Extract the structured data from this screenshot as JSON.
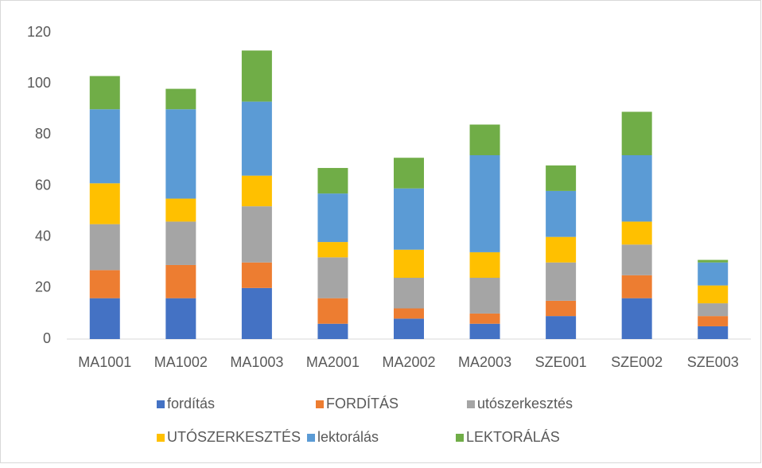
{
  "chart_data": {
    "type": "stacked_bar",
    "categories": [
      "MA1001",
      "MA1002",
      "MA1003",
      "MA2001",
      "MA2002",
      "MA2003",
      "SZE001",
      "SZE002",
      "SZE003"
    ],
    "series": [
      {
        "name": "fordítás",
        "color": "#4472c4",
        "values": [
          16,
          16,
          20,
          6,
          8,
          6,
          9,
          16,
          5
        ]
      },
      {
        "name": "FORDÍTÁS",
        "color": "#ed7d31",
        "values": [
          11,
          13,
          10,
          10,
          4,
          4,
          6,
          9,
          4
        ]
      },
      {
        "name": "utószerkesztés",
        "color": "#a5a5a5",
        "values": [
          18,
          17,
          22,
          16,
          12,
          14,
          15,
          12,
          5
        ]
      },
      {
        "name": "UTÓSZERKESZTÉS",
        "color": "#ffc000",
        "values": [
          16,
          9,
          12,
          6,
          11,
          10,
          10,
          9,
          7
        ]
      },
      {
        "name": "lektorálás",
        "color": "#5b9bd5",
        "values": [
          29,
          35,
          29,
          19,
          24,
          38,
          18,
          26,
          9
        ]
      },
      {
        "name": "LEKTORÁLÁS",
        "color": "#70ad47",
        "values": [
          13,
          8,
          20,
          10,
          12,
          12,
          10,
          17,
          1
        ]
      }
    ],
    "ylim": [
      0,
      120
    ],
    "yticks": [
      0,
      20,
      40,
      60,
      80,
      100,
      120
    ],
    "grid": false,
    "legend": "bottom"
  }
}
